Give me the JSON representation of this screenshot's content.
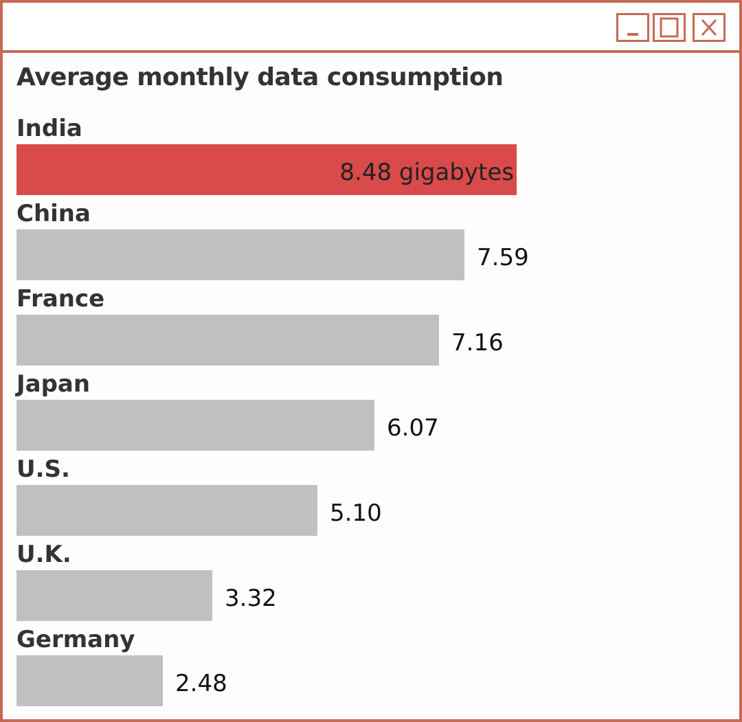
{
  "window": {
    "controls": [
      "minimize",
      "maximize",
      "close"
    ],
    "border_color": "#c46a52"
  },
  "colors": {
    "highlight_bar": "#d94a4a",
    "bar": "#c1bfc1",
    "title_text": "#333333"
  },
  "chart_data": {
    "type": "bar",
    "orientation": "horizontal",
    "title": "Average monthly data consumption",
    "categories": [
      "India",
      "China",
      "France",
      "Japan",
      "U.S.",
      "U.K.",
      "Germany"
    ],
    "values": [
      8.48,
      7.59,
      7.16,
      6.07,
      5.1,
      3.32,
      2.48
    ],
    "value_labels": [
      "8.48 gigabytes",
      "7.59",
      "7.16",
      "6.07",
      "5.10",
      "3.32",
      "2.48"
    ],
    "highlight_index": 0,
    "xlim": [
      0,
      8.48
    ],
    "grid": false,
    "legend": "none"
  }
}
